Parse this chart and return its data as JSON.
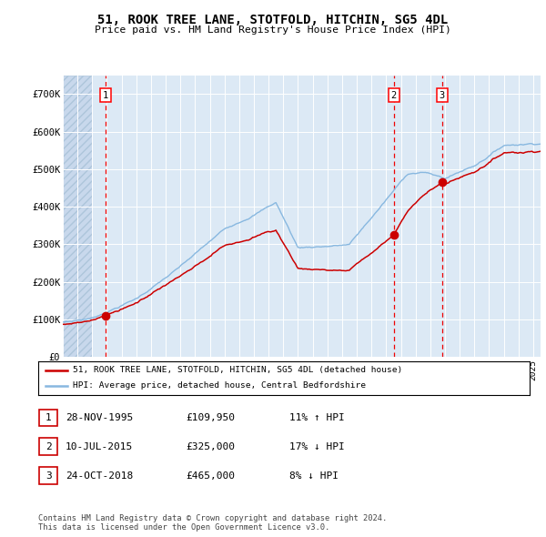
{
  "title": "51, ROOK TREE LANE, STOTFOLD, HITCHIN, SG5 4DL",
  "subtitle": "Price paid vs. HM Land Registry's House Price Index (HPI)",
  "sale_dates_num": [
    1995.91,
    2015.52,
    2018.81
  ],
  "sale_prices": [
    109950,
    325000,
    465000
  ],
  "sale_labels": [
    "1",
    "2",
    "3"
  ],
  "hpi_red_label": "51, ROOK TREE LANE, STOTFOLD, HITCHIN, SG5 4DL (detached house)",
  "hpi_blue_label": "HPI: Average price, detached house, Central Bedfordshire",
  "table_rows": [
    [
      "1",
      "28-NOV-1995",
      "£109,950",
      "11% ↑ HPI"
    ],
    [
      "2",
      "10-JUL-2015",
      "£325,000",
      "17% ↓ HPI"
    ],
    [
      "3",
      "24-OCT-2018",
      "£465,000",
      "8% ↓ HPI"
    ]
  ],
  "footnote": "Contains HM Land Registry data © Crown copyright and database right 2024.\nThis data is licensed under the Open Government Licence v3.0.",
  "ylim": [
    0,
    750000
  ],
  "yticks": [
    0,
    100000,
    200000,
    300000,
    400000,
    500000,
    600000,
    700000
  ],
  "ytick_labels": [
    "£0",
    "£100K",
    "£200K",
    "£300K",
    "£400K",
    "£500K",
    "£600K",
    "£700K"
  ],
  "xlim_start": 1993.0,
  "xlim_end": 2025.5,
  "hatch_end": 1995.0,
  "bg_color": "#dce9f5",
  "grid_color": "#ffffff",
  "hatch_color": "#c8d8ec",
  "red_line_color": "#cc0000",
  "blue_line_color": "#88b8e0",
  "sale_vline_color": "#ee0000",
  "dot_color": "#cc0000",
  "fig_bg": "#ffffff"
}
